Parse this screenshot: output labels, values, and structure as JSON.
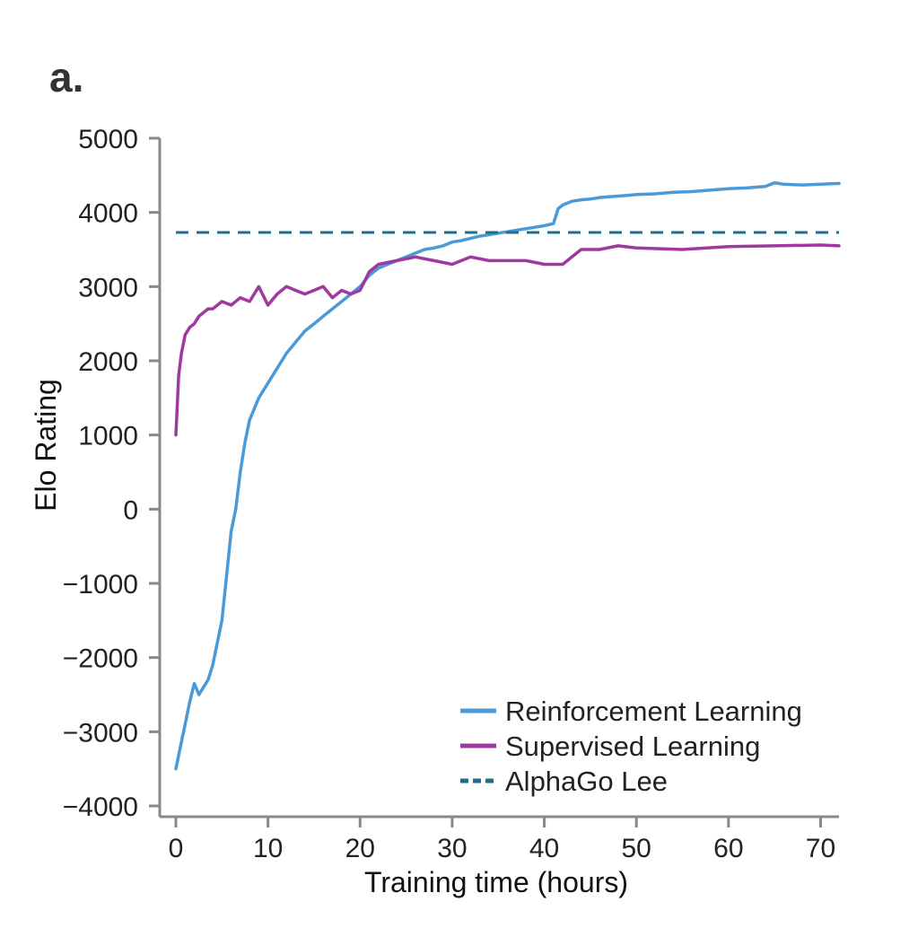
{
  "panel_label": "a.",
  "chart_data": {
    "type": "line",
    "title": "",
    "xlabel": "Training time (hours)",
    "ylabel": "Elo Rating",
    "xlim": [
      0,
      72
    ],
    "ylim": [
      -4000,
      5000
    ],
    "xticks": [
      0,
      10,
      20,
      30,
      40,
      50,
      60,
      70
    ],
    "yticks": [
      -4000,
      -3000,
      -2000,
      -1000,
      0,
      1000,
      2000,
      3000,
      4000,
      5000
    ],
    "ytick_labels": [
      "−4000",
      "−3000",
      "−2000",
      "−1000",
      "0",
      "1000",
      "2000",
      "3000",
      "4000",
      "5000"
    ],
    "legend_position": "bottom-right",
    "series": [
      {
        "name": "Reinforcement Learning",
        "color": "#4a9ad8",
        "style": "solid",
        "x": [
          0,
          0.5,
          1,
          1.5,
          2,
          2.5,
          3,
          3.5,
          4,
          4.5,
          5,
          5.5,
          6,
          6.5,
          7,
          7.5,
          8,
          9,
          10,
          11,
          12,
          13,
          14,
          15,
          16,
          17,
          18,
          19,
          20,
          21,
          22,
          23,
          24,
          25,
          26,
          27,
          28,
          29,
          30,
          31,
          32,
          33,
          34,
          35,
          36,
          37,
          38,
          39,
          40,
          41,
          41.5,
          42,
          43,
          44,
          45,
          46,
          47,
          48,
          49,
          50,
          52,
          54,
          56,
          58,
          60,
          62,
          64,
          65,
          66,
          68,
          70,
          72
        ],
        "values": [
          -3500,
          -3200,
          -2900,
          -2600,
          -2350,
          -2500,
          -2400,
          -2300,
          -2100,
          -1800,
          -1500,
          -900,
          -300,
          0,
          500,
          900,
          1200,
          1500,
          1700,
          1900,
          2100,
          2250,
          2400,
          2500,
          2600,
          2700,
          2800,
          2900,
          3000,
          3150,
          3250,
          3300,
          3350,
          3400,
          3450,
          3500,
          3520,
          3550,
          3600,
          3620,
          3650,
          3680,
          3700,
          3720,
          3740,
          3760,
          3780,
          3800,
          3820,
          3850,
          4050,
          4100,
          4150,
          4170,
          4180,
          4200,
          4210,
          4220,
          4230,
          4240,
          4250,
          4270,
          4280,
          4300,
          4320,
          4330,
          4350,
          4400,
          4380,
          4370,
          4380,
          4390
        ]
      },
      {
        "name": "Supervised Learning",
        "color": "#a0399f",
        "style": "solid",
        "x": [
          0,
          0.3,
          0.6,
          1,
          1.5,
          2,
          2.5,
          3,
          3.5,
          4,
          5,
          6,
          7,
          8,
          9,
          10,
          11,
          12,
          13,
          14,
          15,
          16,
          17,
          18,
          19,
          20,
          21,
          22,
          24,
          26,
          28,
          30,
          32,
          34,
          36,
          38,
          40,
          42,
          44,
          46,
          48,
          50,
          55,
          60,
          65,
          70,
          72
        ],
        "values": [
          1000,
          1800,
          2100,
          2350,
          2450,
          2500,
          2600,
          2650,
          2700,
          2700,
          2800,
          2750,
          2850,
          2800,
          3000,
          2750,
          2900,
          3000,
          2950,
          2900,
          2950,
          3000,
          2850,
          2950,
          2900,
          2950,
          3200,
          3300,
          3350,
          3400,
          3350,
          3300,
          3400,
          3350,
          3350,
          3350,
          3300,
          3300,
          3500,
          3500,
          3550,
          3520,
          3500,
          3540,
          3550,
          3560,
          3550
        ]
      },
      {
        "name": "AlphaGo Lee",
        "color": "#1f6d8f",
        "style": "dashed",
        "x": [
          0,
          72
        ],
        "values": [
          3730,
          3730
        ]
      }
    ]
  }
}
